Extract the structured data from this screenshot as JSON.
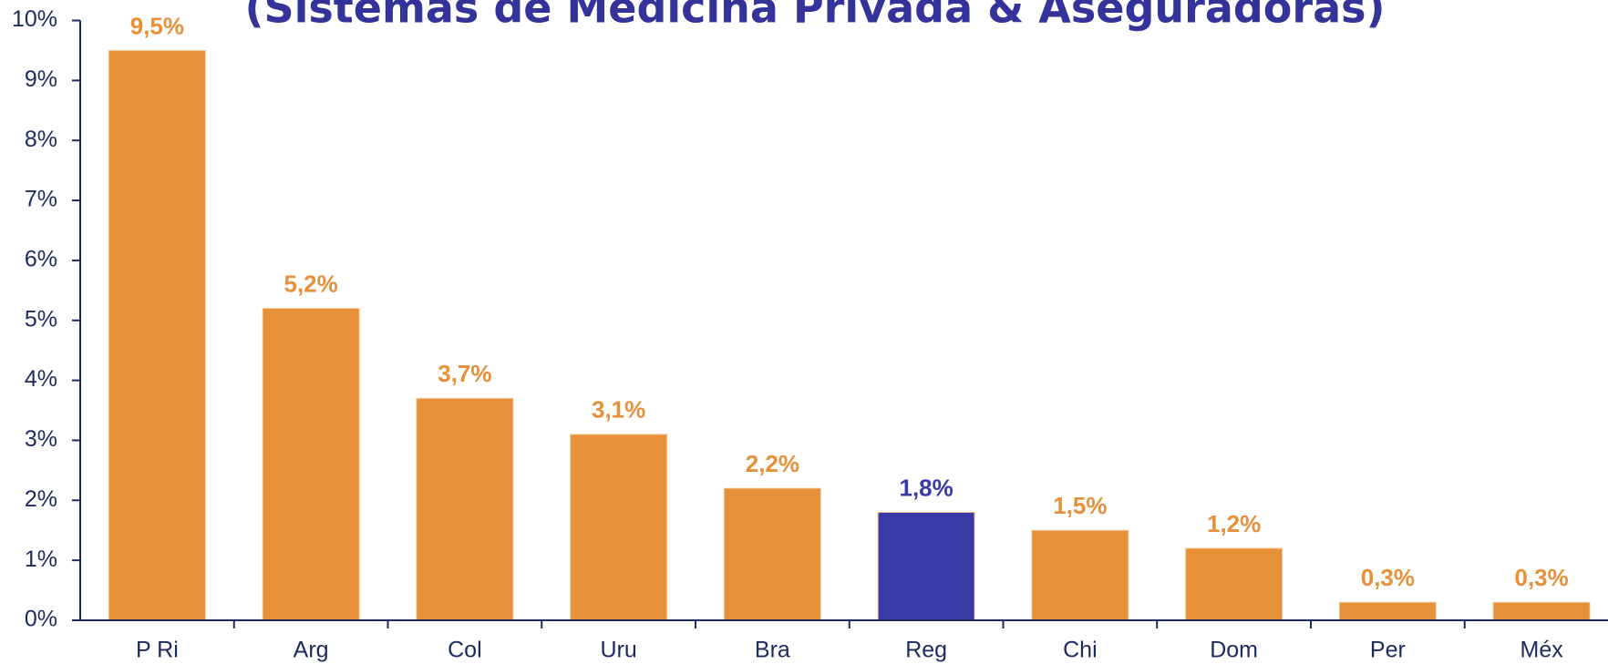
{
  "chart_data": {
    "type": "bar",
    "title": "(Sistemas de Medicina Privada & Aseguradoras)",
    "categories": [
      "P Ri",
      "Arg",
      "Col",
      "Uru",
      "Bra",
      "Reg",
      "Chi",
      "Dom",
      "Per",
      "Méx"
    ],
    "values": [
      9.5,
      5.2,
      3.7,
      3.1,
      2.2,
      1.8,
      1.5,
      1.2,
      0.3,
      0.3
    ],
    "value_labels": [
      "9,5%",
      "5,2%",
      "3,7%",
      "3,1%",
      "2,2%",
      "1,8%",
      "1,5%",
      "1,2%",
      "0,3%",
      "0,3%"
    ],
    "colors": [
      "#e6903a",
      "#e6903a",
      "#e6903a",
      "#e6903a",
      "#e6903a",
      "#3a3aa6",
      "#e6903a",
      "#e6903a",
      "#e6903a",
      "#e6903a"
    ],
    "ylim": [
      0,
      10
    ],
    "yticks": [
      {
        "value": 0,
        "label": "0%"
      },
      {
        "value": 1,
        "label": "1%"
      },
      {
        "value": 2,
        "label": "2%"
      },
      {
        "value": 3,
        "label": "3%"
      },
      {
        "value": 4,
        "label": "4%"
      },
      {
        "value": 5,
        "label": "5%"
      },
      {
        "value": 6,
        "label": "6%"
      },
      {
        "value": 7,
        "label": "7%"
      },
      {
        "value": 8,
        "label": "8%"
      },
      {
        "value": 9,
        "label": "9%"
      },
      {
        "value": 10,
        "label": "10%"
      }
    ],
    "grid": false
  }
}
